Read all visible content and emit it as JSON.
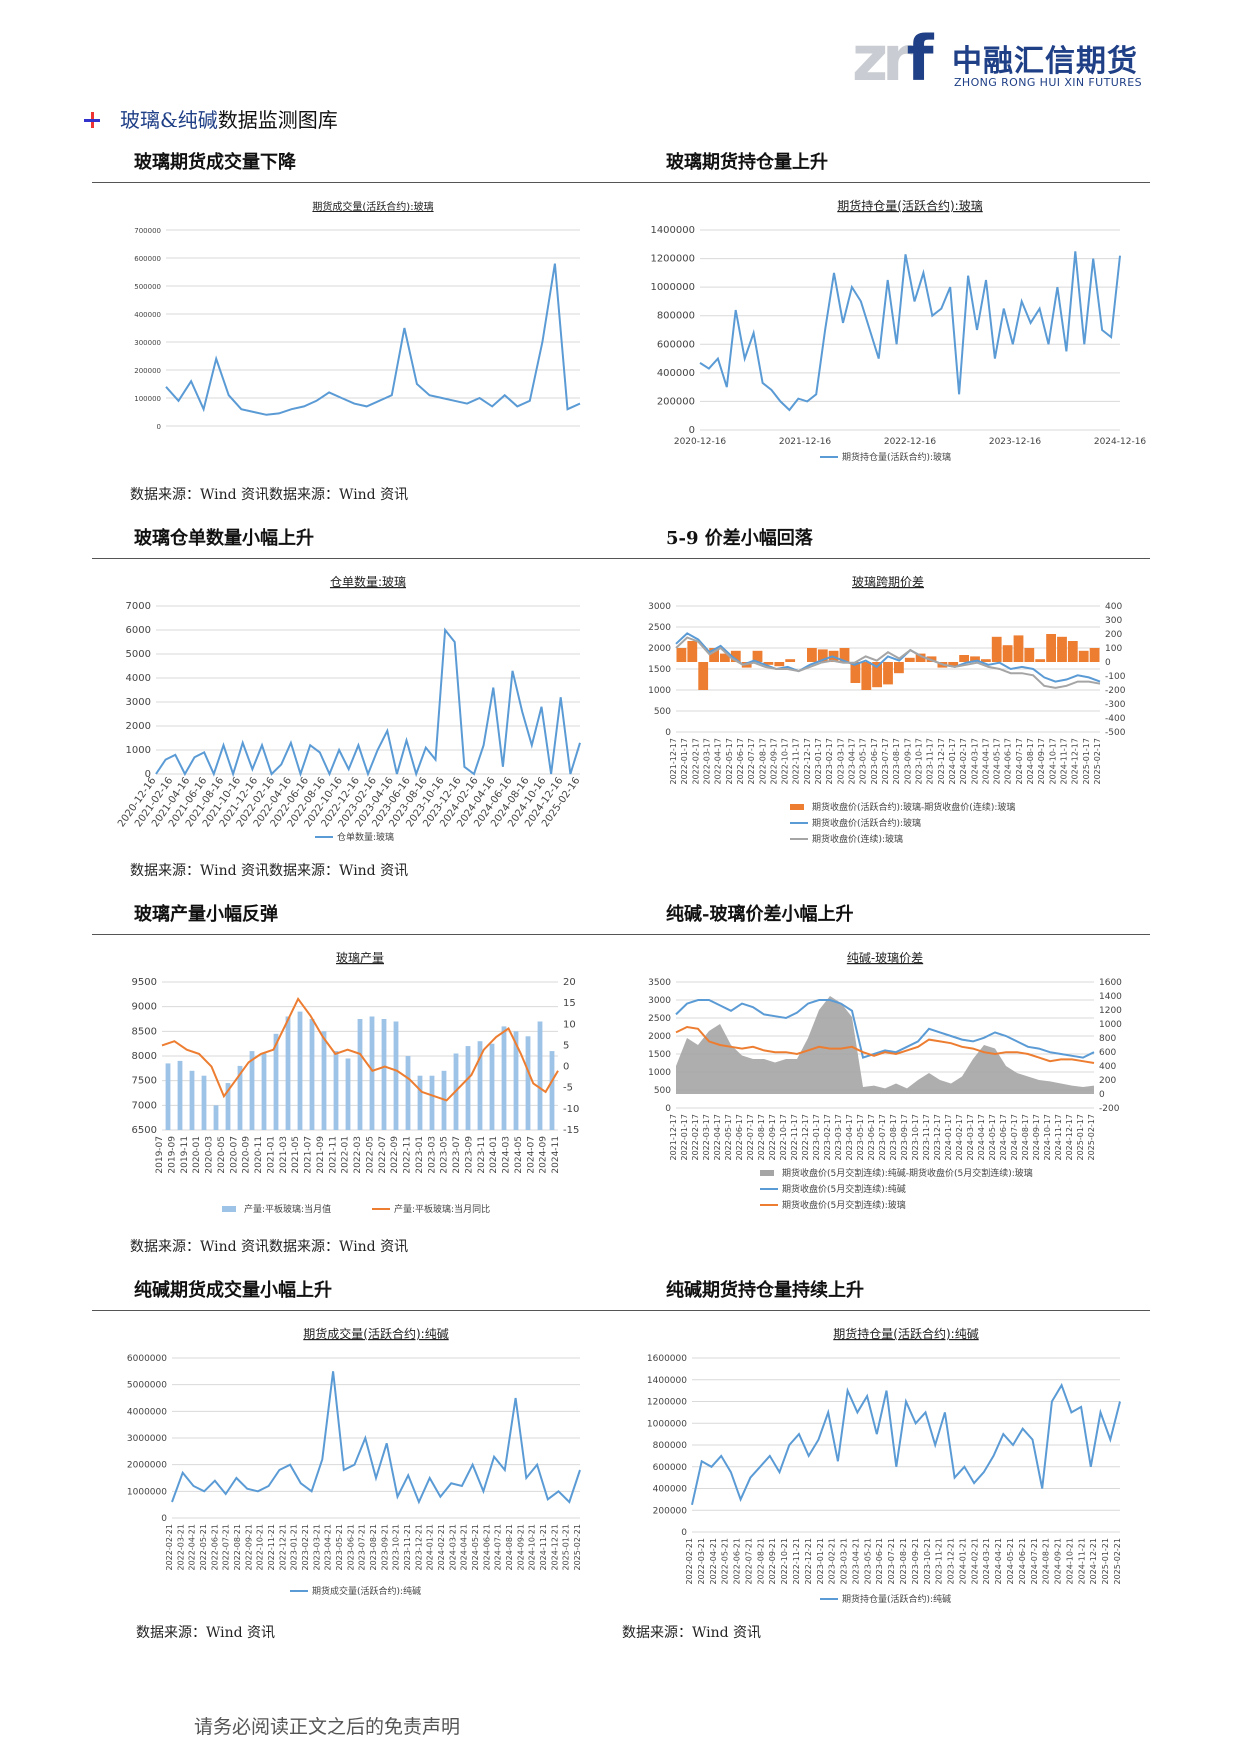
{
  "header": {
    "logo_mark": "znf",
    "logo_cn": "中融汇信期货",
    "logo_en": "ZHONG RONG HUI XIN FUTURES",
    "title_prefix": "玻璃&纯碱",
    "title_suffix": "数据监测图库"
  },
  "sections": [
    {
      "title": "玻璃期货成交量下降"
    },
    {
      "title": "玻璃期货持仓量上升"
    },
    {
      "title": "玻璃仓单数量小幅上升"
    },
    {
      "title": "5-9 价差小幅回落"
    },
    {
      "title": "玻璃产量小幅反弹"
    },
    {
      "title": "纯碱-玻璃价差小幅上升"
    },
    {
      "title": "纯碱期货成交量小幅上升"
    },
    {
      "title": "纯碱期货持仓量持续上升"
    }
  ],
  "sources": {
    "row1": "数据来源：Wind 资讯数据来源：Wind 资讯",
    "row2": "数据来源：Wind 资讯数据来源：Wind 资讯",
    "row3": "数据来源：Wind 资讯数据来源：Wind 资讯",
    "row4_left": "数据来源：Wind 资讯",
    "row4_right": "数据来源：Wind 资讯"
  },
  "footer": "请务必阅读正文之后的免责声明",
  "colors": {
    "blue": "#5b9bd5",
    "orange": "#ed7d31",
    "gray": "#a5a5a5",
    "grid": "#d9d9d9"
  },
  "chart_data": [
    {
      "type": "line",
      "title": "期货成交量(活跃合约):玻璃",
      "y_ticks": [
        "0",
        "100000",
        "200000",
        "300000",
        "400000",
        "500000",
        "600000",
        "700000"
      ],
      "ylim": [
        0,
        700000
      ],
      "series": [
        {
          "values": [
            140000,
            90000,
            160000,
            60000,
            240000,
            110000,
            60000,
            50000,
            40000,
            45000,
            60000,
            70000,
            90000,
            120000,
            100000,
            80000,
            70000,
            90000,
            110000,
            350000,
            150000,
            110000,
            100000,
            90000,
            80000,
            100000,
            70000,
            110000,
            70000,
            90000,
            300000,
            580000,
            60000,
            80000
          ]
        }
      ],
      "legend": ""
    },
    {
      "type": "line",
      "title": "期货持仓量(活跃合约):玻璃",
      "x_ticks": [
        "2020-12-16",
        "2021-12-16",
        "2022-12-16",
        "2023-12-16",
        "2024-12-16"
      ],
      "y_ticks": [
        "0",
        "200000",
        "400000",
        "600000",
        "800000",
        "1000000",
        "1200000",
        "1400000"
      ],
      "ylim": [
        0,
        1400000
      ],
      "series": [
        {
          "name": "期货持仓量(活跃合约):玻璃",
          "values": [
            470000,
            430000,
            500000,
            300000,
            840000,
            500000,
            680000,
            330000,
            280000,
            200000,
            140000,
            220000,
            200000,
            250000,
            700000,
            1100000,
            750000,
            1000000,
            900000,
            700000,
            500000,
            1050000,
            600000,
            1230000,
            900000,
            1100000,
            800000,
            850000,
            1000000,
            250000,
            1080000,
            700000,
            1050000,
            500000,
            850000,
            600000,
            900000,
            750000,
            850000,
            600000,
            1000000,
            550000,
            1250000,
            600000,
            1200000,
            700000,
            650000,
            1220000
          ]
        }
      ]
    },
    {
      "type": "line",
      "title": "仓单数量:玻璃",
      "x_ticks": [
        "2020-12-16",
        "2021-02-16",
        "2021-04-16",
        "2021-06-16",
        "2021-08-16",
        "2021-10-16",
        "2021-12-16",
        "2022-02-16",
        "2022-04-16",
        "2022-06-16",
        "2022-08-16",
        "2022-10-16",
        "2022-12-16",
        "2023-02-16",
        "2023-04-16",
        "2023-06-16",
        "2023-08-16",
        "2023-10-16",
        "2023-12-16",
        "2024-02-16",
        "2024-04-16",
        "2024-06-16",
        "2024-08-16",
        "2024-10-16",
        "2024-12-16",
        "2025-02-16"
      ],
      "y_ticks": [
        "0",
        "1000",
        "2000",
        "3000",
        "4000",
        "5000",
        "6000",
        "7000"
      ],
      "ylim": [
        0,
        7000
      ],
      "series": [
        {
          "name": "仓单数量:玻璃",
          "values": [
            0,
            600,
            800,
            0,
            700,
            900,
            0,
            1200,
            0,
            1300,
            200,
            1200,
            0,
            400,
            1300,
            0,
            1200,
            900,
            0,
            1000,
            200,
            1200,
            0,
            1000,
            1800,
            0,
            1400,
            0,
            1100,
            600,
            6000,
            5500,
            300,
            0,
            1200,
            3600,
            300,
            4300,
            2600,
            1200,
            2800,
            0,
            3200,
            0,
            1300
          ]
        }
      ]
    },
    {
      "type": "line",
      "title": "玻璃跨期价差",
      "x_ticks": [
        "2021-12-17",
        "2022-01-17",
        "2022-02-17",
        "2022-03-17",
        "2022-04-17",
        "2022-05-17",
        "2022-06-17",
        "2022-07-17",
        "2022-08-17",
        "2022-09-17",
        "2022-10-17",
        "2022-11-17",
        "2022-12-17",
        "2023-01-17",
        "2023-02-17",
        "2023-03-17",
        "2023-04-17",
        "2023-05-17",
        "2023-06-17",
        "2023-07-17",
        "2023-08-17",
        "2023-09-17",
        "2023-10-17",
        "2023-11-17",
        "2023-12-17",
        "2024-01-17",
        "2024-02-17",
        "2024-03-17",
        "2024-04-17",
        "2024-05-17",
        "2024-06-17",
        "2024-07-17",
        "2024-08-17",
        "2024-09-17",
        "2024-10-17",
        "2024-11-17",
        "2024-12-17",
        "2025-01-17",
        "2025-02-17"
      ],
      "y_left_ticks": [
        "0",
        "500",
        "1000",
        "1500",
        "2000",
        "2500",
        "3000"
      ],
      "y_right_ticks": [
        "-500",
        "-400",
        "-300",
        "-200",
        "-100",
        "0",
        "100",
        "200",
        "300",
        "400"
      ],
      "ylim_left": [
        0,
        3000
      ],
      "ylim_right": [
        -500,
        400
      ],
      "series": [
        {
          "name": "期货收盘价(活跃合约):玻璃-期货收盘价(连续):玻璃",
          "kind": "bar",
          "axis": "right",
          "values": [
            100,
            150,
            -200,
            100,
            60,
            80,
            -40,
            80,
            -20,
            -30,
            20,
            0,
            100,
            90,
            80,
            100,
            -150,
            -200,
            -180,
            -160,
            -80,
            30,
            60,
            40,
            -40,
            -30,
            50,
            40,
            20,
            180,
            120,
            190,
            100,
            20,
            200,
            180,
            150,
            80,
            100
          ]
        },
        {
          "name": "期货收盘价(活跃合约):玻璃",
          "axis": "left",
          "values": [
            2100,
            2350,
            2200,
            1900,
            2050,
            1800,
            1600,
            1700,
            1600,
            1500,
            1550,
            1450,
            1600,
            1700,
            1800,
            1700,
            1600,
            1700,
            1550,
            1800,
            1700,
            1950,
            1800,
            1700,
            1600,
            1550,
            1650,
            1700,
            1600,
            1650,
            1500,
            1550,
            1500,
            1300,
            1200,
            1250,
            1350,
            1300,
            1200
          ]
        },
        {
          "name": "期货收盘价(连续):玻璃",
          "axis": "left",
          "values": [
            2000,
            2250,
            2150,
            1850,
            2000,
            1750,
            1600,
            1650,
            1550,
            1500,
            1500,
            1450,
            1550,
            1650,
            1700,
            1650,
            1650,
            1800,
            1700,
            1900,
            1750,
            1950,
            1800,
            1700,
            1600,
            1550,
            1600,
            1650,
            1550,
            1500,
            1400,
            1400,
            1350,
            1100,
            1050,
            1100,
            1200,
            1200,
            1150
          ]
        }
      ]
    },
    {
      "type": "bar",
      "title": "玻璃产量",
      "x_ticks": [
        "2019-07",
        "2019-09",
        "2019-11",
        "2020-01",
        "2020-03",
        "2020-05",
        "2020-07",
        "2020-09",
        "2020-11",
        "2021-01",
        "2021-03",
        "2021-05",
        "2021-07",
        "2021-09",
        "2021-11",
        "2022-01",
        "2022-03",
        "2022-05",
        "2022-07",
        "2022-09",
        "2022-11",
        "2023-01",
        "2023-03",
        "2023-05",
        "2023-07",
        "2023-09",
        "2023-11",
        "2024-01",
        "2024-03",
        "2024-05",
        "2024-07",
        "2024-09",
        "2024-11"
      ],
      "y_left_ticks": [
        "6500",
        "7000",
        "7500",
        "8000",
        "8500",
        "9000",
        "9500"
      ],
      "y_right_ticks": [
        "-15",
        "-10",
        "-5",
        "0",
        "5",
        "10",
        "15",
        "20"
      ],
      "ylim_left": [
        6500,
        9500
      ],
      "ylim_right": [
        -15,
        20
      ],
      "series": [
        {
          "name": "产量:平板玻璃:当月值",
          "kind": "bar",
          "axis": "left",
          "values": [
            7850,
            7900,
            7700,
            7600,
            7000,
            7450,
            7800,
            8100,
            8050,
            8450,
            8800,
            8900,
            8750,
            8500,
            8100,
            7950,
            8750,
            8800,
            8750,
            8700,
            8000,
            7600,
            7600,
            7700,
            8050,
            8200,
            8300,
            8250,
            8600,
            8500,
            8400,
            8700,
            8100
          ]
        },
        {
          "name": "产量:平板玻璃:当月同比",
          "kind": "line",
          "axis": "right",
          "values": [
            5,
            6,
            4,
            3,
            0,
            -7,
            -3,
            1,
            3,
            4,
            10,
            16,
            12,
            7,
            3,
            4,
            3,
            -1,
            0,
            -1,
            -3,
            -6,
            -7,
            -8,
            -5,
            -2,
            4,
            7,
            9,
            3,
            -4,
            -6,
            -1
          ]
        }
      ]
    },
    {
      "type": "area",
      "title": "纯碱-玻璃价差",
      "x_ticks": [
        "2021-12-17",
        "2022-01-17",
        "2022-02-17",
        "2022-03-17",
        "2022-04-17",
        "2022-05-17",
        "2022-06-17",
        "2022-07-17",
        "2022-08-17",
        "2022-09-17",
        "2022-10-17",
        "2022-11-17",
        "2022-12-17",
        "2023-01-17",
        "2023-02-17",
        "2023-03-17",
        "2023-04-17",
        "2023-05-17",
        "2023-06-17",
        "2023-07-17",
        "2023-08-17",
        "2023-09-17",
        "2023-10-17",
        "2023-11-17",
        "2023-12-17",
        "2024-01-17",
        "2024-02-17",
        "2024-03-17",
        "2024-04-17",
        "2024-05-17",
        "2024-06-17",
        "2024-07-17",
        "2024-08-17",
        "2024-09-17",
        "2024-10-17",
        "2024-11-17",
        "2024-12-17",
        "2025-01-17",
        "2025-02-17"
      ],
      "y_left_ticks": [
        "0",
        "500",
        "1000",
        "1500",
        "2000",
        "2500",
        "3000",
        "3500"
      ],
      "y_right_ticks": [
        "-200",
        "0",
        "200",
        "400",
        "600",
        "800",
        "1000",
        "1200",
        "1400",
        "1600"
      ],
      "ylim_left": [
        0,
        3500
      ],
      "ylim_right": [
        -200,
        1600
      ],
      "series": [
        {
          "name": "期货收盘价(5月交割连续):纯碱-期货收盘价(5月交割连续):玻璃",
          "kind": "area",
          "axis": "right",
          "values": [
            400,
            800,
            700,
            900,
            1000,
            700,
            550,
            500,
            500,
            450,
            500,
            500,
            800,
            1200,
            1400,
            1300,
            1100,
            100,
            120,
            80,
            150,
            80,
            200,
            300,
            200,
            150,
            250,
            500,
            700,
            650,
            400,
            300,
            250,
            200,
            180,
            150,
            120,
            100,
            120
          ]
        },
        {
          "name": "期货收盘价(5月交割连续):纯碱",
          "kind": "line",
          "axis": "left",
          "values": [
            2600,
            2900,
            3000,
            3000,
            2850,
            2700,
            2900,
            2800,
            2600,
            2550,
            2500,
            2650,
            2900,
            3000,
            3000,
            2900,
            2700,
            1400,
            1500,
            1600,
            1550,
            1700,
            1850,
            2200,
            2100,
            2000,
            1900,
            1850,
            1950,
            2100,
            2000,
            1850,
            1700,
            1650,
            1550,
            1500,
            1450,
            1400,
            1550
          ]
        },
        {
          "name": "期货收盘价(5月交割连续):玻璃",
          "kind": "line",
          "axis": "left",
          "values": [
            2100,
            2250,
            2200,
            1850,
            1750,
            1700,
            1650,
            1700,
            1600,
            1550,
            1550,
            1500,
            1600,
            1700,
            1650,
            1650,
            1700,
            1550,
            1450,
            1550,
            1500,
            1600,
            1700,
            1900,
            1850,
            1800,
            1700,
            1650,
            1550,
            1500,
            1550,
            1550,
            1500,
            1400,
            1300,
            1350,
            1350,
            1300,
            1250
          ]
        }
      ]
    },
    {
      "type": "line",
      "title": "期货成交量(活跃合约):纯碱",
      "x_ticks": [
        "2022-02-21",
        "2022-03-21",
        "2022-04-21",
        "2022-05-21",
        "2022-06-21",
        "2022-07-21",
        "2022-08-21",
        "2022-09-21",
        "2022-10-21",
        "2022-11-21",
        "2022-12-21",
        "2023-01-21",
        "2023-02-21",
        "2023-03-21",
        "2023-04-21",
        "2023-05-21",
        "2023-06-21",
        "2023-07-21",
        "2023-08-21",
        "2023-09-21",
        "2023-10-21",
        "2023-11-21",
        "2023-12-21",
        "2024-01-21",
        "2024-02-21",
        "2024-03-21",
        "2024-04-21",
        "2024-05-21",
        "2024-06-21",
        "2024-07-21",
        "2024-08-21",
        "2024-09-21",
        "2024-10-21",
        "2024-11-21",
        "2024-12-21",
        "2025-01-21",
        "2025-02-21"
      ],
      "y_ticks": [
        "0",
        "1000000",
        "2000000",
        "3000000",
        "4000000",
        "5000000",
        "6000000"
      ],
      "ylim": [
        0,
        6000000
      ],
      "series": [
        {
          "name": "期货成交量(活跃合约):纯碱",
          "values": [
            600000,
            1700000,
            1200000,
            1000000,
            1400000,
            900000,
            1500000,
            1100000,
            1000000,
            1200000,
            1800000,
            2000000,
            1300000,
            1000000,
            2200000,
            5500000,
            1800000,
            2000000,
            3000000,
            1500000,
            2800000,
            800000,
            1600000,
            600000,
            1500000,
            800000,
            1300000,
            1200000,
            2000000,
            1000000,
            2300000,
            1800000,
            4500000,
            1500000,
            2000000,
            700000,
            1000000,
            600000,
            1800000
          ]
        }
      ]
    },
    {
      "type": "line",
      "title": "期货持仓量(活跃合约):纯碱",
      "x_ticks": [
        "2022-02-21",
        "2022-03-21",
        "2022-04-21",
        "2022-05-21",
        "2022-06-21",
        "2022-07-21",
        "2022-08-21",
        "2022-09-21",
        "2022-10-21",
        "2022-11-21",
        "2022-12-21",
        "2023-01-21",
        "2023-02-21",
        "2023-03-21",
        "2023-04-21",
        "2023-05-21",
        "2023-06-21",
        "2023-07-21",
        "2023-08-21",
        "2023-09-21",
        "2023-10-21",
        "2023-11-21",
        "2023-12-21",
        "2024-01-21",
        "2024-02-21",
        "2024-03-21",
        "2024-04-21",
        "2024-05-21",
        "2024-06-21",
        "2024-07-21",
        "2024-08-21",
        "2024-09-21",
        "2024-10-21",
        "2024-11-21",
        "2024-12-21",
        "2025-01-21",
        "2025-02-21"
      ],
      "y_ticks": [
        "0",
        "200000",
        "400000",
        "600000",
        "800000",
        "1000000",
        "1200000",
        "1400000",
        "1600000"
      ],
      "ylim": [
        0,
        1600000
      ],
      "series": [
        {
          "name": "期货持仓量(活跃合约):纯碱",
          "values": [
            250000,
            650000,
            600000,
            700000,
            550000,
            300000,
            500000,
            600000,
            700000,
            550000,
            800000,
            900000,
            700000,
            850000,
            1100000,
            650000,
            1300000,
            1100000,
            1250000,
            900000,
            1300000,
            600000,
            1200000,
            1000000,
            1100000,
            800000,
            1100000,
            500000,
            600000,
            450000,
            550000,
            700000,
            900000,
            800000,
            950000,
            850000,
            400000,
            1200000,
            1350000,
            1100000,
            1150000,
            600000,
            1100000,
            850000,
            1200000
          ]
        }
      ]
    }
  ]
}
